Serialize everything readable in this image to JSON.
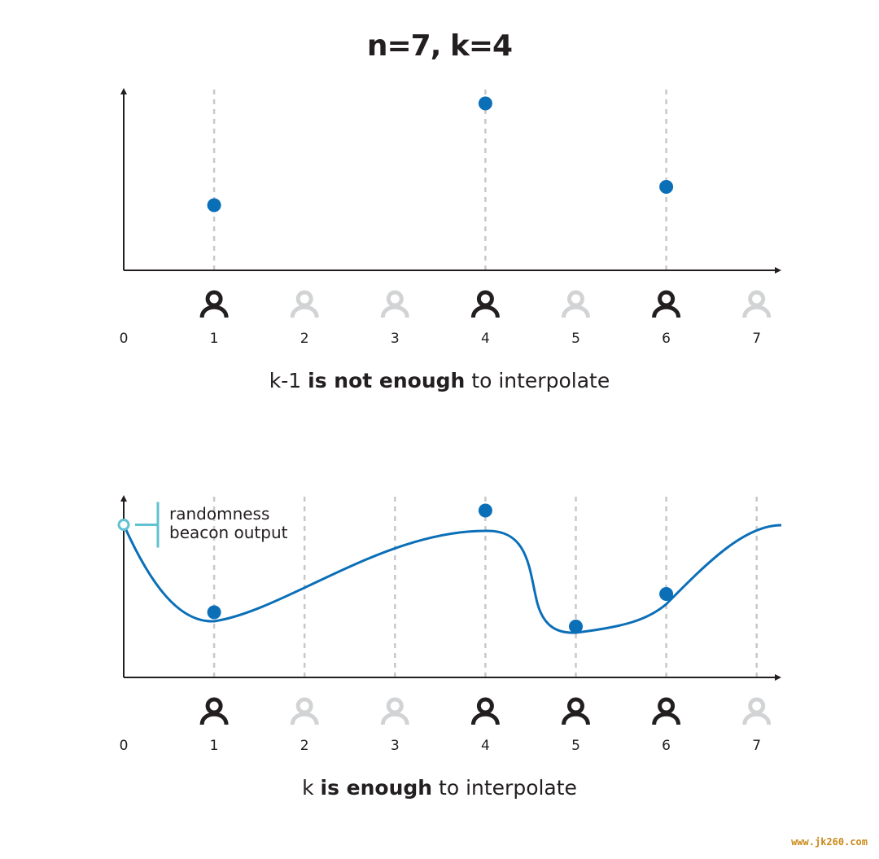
{
  "title": "n=7, k=4",
  "x_tick_labels": [
    "0",
    "1",
    "2",
    "3",
    "4",
    "5",
    "6",
    "7"
  ],
  "colors": {
    "point": "#0b6fb8",
    "curve": "#0b6fb8",
    "beacon": "#5fc1d2",
    "active_person": "#231f20",
    "inactive_person": "#d1d3d4",
    "grid": "#c8c8c8"
  },
  "panels": [
    {
      "id": "top",
      "caption_pre": "k-1 ",
      "caption_bold": "is not enough",
      "caption_post": " to interpolate",
      "participants": [
        {
          "index": 1,
          "active": true
        },
        {
          "index": 2,
          "active": false
        },
        {
          "index": 3,
          "active": false
        },
        {
          "index": 4,
          "active": true
        },
        {
          "index": 5,
          "active": false
        },
        {
          "index": 6,
          "active": true
        },
        {
          "index": 7,
          "active": false
        }
      ],
      "points": [
        {
          "x": 1,
          "y": 0.32
        },
        {
          "x": 4,
          "y": 0.82
        },
        {
          "x": 6,
          "y": 0.41
        }
      ],
      "show_curve": false
    },
    {
      "id": "bottom",
      "caption_pre": "k ",
      "caption_bold": "is enough",
      "caption_post": " to interpolate",
      "participants": [
        {
          "index": 1,
          "active": true
        },
        {
          "index": 2,
          "active": false
        },
        {
          "index": 3,
          "active": false
        },
        {
          "index": 4,
          "active": true
        },
        {
          "index": 5,
          "active": true
        },
        {
          "index": 6,
          "active": true
        },
        {
          "index": 7,
          "active": false
        }
      ],
      "points": [
        {
          "x": 1,
          "y": 0.32
        },
        {
          "x": 4,
          "y": 0.82
        },
        {
          "x": 5,
          "y": 0.25
        },
        {
          "x": 6,
          "y": 0.41
        }
      ],
      "show_curve": true,
      "beacon": {
        "x": 0,
        "y": 0.75,
        "label_line1": "randomness",
        "label_line2": "beacon output"
      }
    }
  ]
}
